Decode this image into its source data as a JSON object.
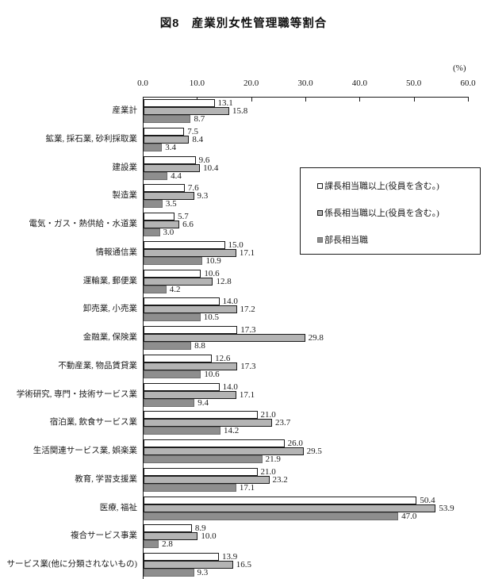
{
  "page": {
    "title": "図8　産業別女性管理職等割合",
    "unit_label": "(%)"
  },
  "chart_data": {
    "type": "bar",
    "orientation": "horizontal",
    "title": "図8　産業別女性管理職等割合",
    "value_unit": "%",
    "xlim": [
      0,
      60
    ],
    "x_tick_labels": [
      "0.0",
      "10.0",
      "20.0",
      "30.0",
      "40.0",
      "50.0",
      "60.0"
    ],
    "grid": false,
    "legend_position": "inside-upper-right",
    "value_labels": "shown, one decimal",
    "categories": [
      "産業計",
      "鉱業, 採石業, 砂利採取業",
      "建設業",
      "製造業",
      "電気・ガス・熱供給・水道業",
      "情報通信業",
      "運輸業, 郵便業",
      "卸売業, 小売業",
      "金融業, 保険業",
      "不動産業, 物品賃貸業",
      "学術研究, 専門・技術サービス業",
      "宿泊業, 飲食サービス業",
      "生活関連サービス業, 娯楽業",
      "教育, 学習支援業",
      "医療, 福祉",
      "複合サービス事業",
      "サービス業(他に分類されないもの)"
    ],
    "series": [
      {
        "key": "kachou",
        "name": "課長相当職以上(役員を含む。)",
        "fill": "#ffffff",
        "border": "#1a1a1a",
        "values": [
          13.1,
          7.5,
          9.6,
          7.6,
          5.7,
          15.0,
          10.6,
          14.0,
          17.3,
          12.6,
          14.0,
          21.0,
          26.0,
          21.0,
          50.4,
          8.9,
          13.9
        ]
      },
      {
        "key": "kakarichou",
        "name": "係長相当職以上(役員を含む。)",
        "fill": "#b4b4b4",
        "border": "#1a1a1a",
        "values": [
          15.8,
          8.4,
          10.4,
          9.3,
          6.6,
          17.1,
          12.8,
          17.2,
          29.8,
          17.3,
          17.1,
          23.7,
          29.5,
          23.2,
          53.9,
          10.0,
          16.5
        ]
      },
      {
        "key": "buchou",
        "name": "部長相当職",
        "fill": "#8e8e8e",
        "border": "#6f6f6f",
        "values": [
          8.7,
          3.4,
          4.4,
          3.5,
          3.0,
          10.9,
          4.2,
          10.5,
          8.8,
          10.6,
          9.4,
          14.2,
          21.9,
          17.1,
          47.0,
          2.8,
          9.3
        ]
      }
    ]
  }
}
